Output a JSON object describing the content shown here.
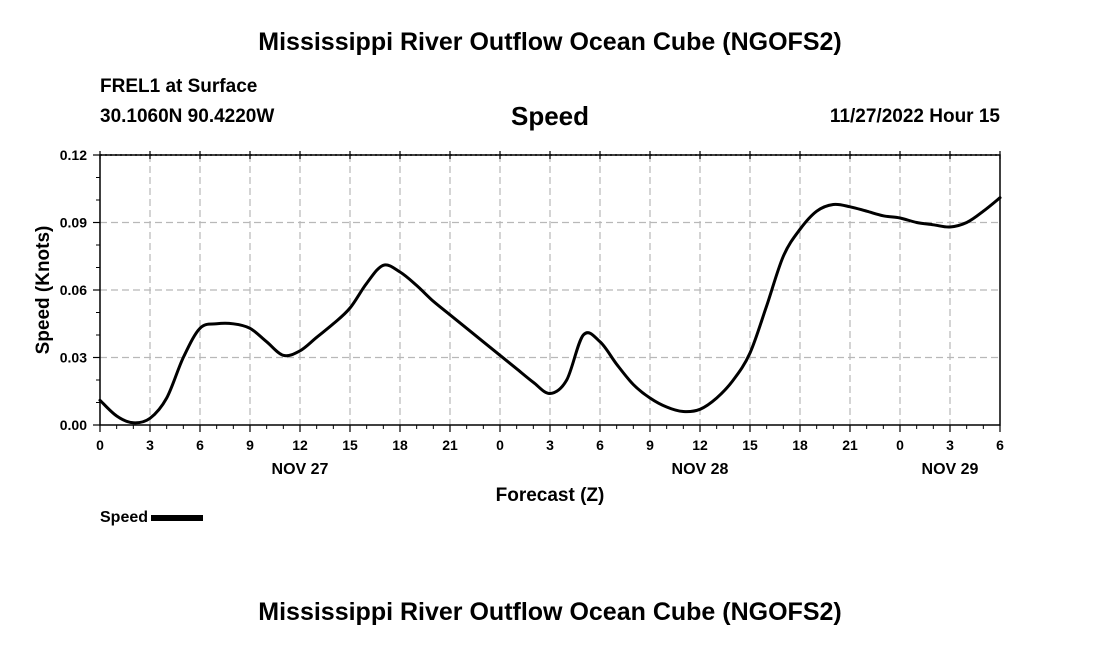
{
  "header": {
    "title": "Mississippi River Outflow Ocean Cube (NGOFS2)",
    "station": "FREL1 at Surface",
    "coordinates": "30.1060N  90.4220W",
    "variable": "Speed",
    "datetime": "11/27/2022 Hour 15"
  },
  "footer": {
    "title": "Mississippi River Outflow Ocean Cube (NGOFS2)"
  },
  "legend": {
    "label": "Speed"
  },
  "chart_data": {
    "type": "line",
    "title": "Speed",
    "xlabel": "Forecast (Z)",
    "ylabel": "Speed (Knots)",
    "x_unit": "hours",
    "xlim": [
      0,
      54
    ],
    "ylim": [
      0,
      0.12
    ],
    "y_ticks": [
      "0.00",
      "0.03",
      "0.06",
      "0.09",
      "0.12"
    ],
    "x_tick_labels": [
      "0",
      "3",
      "6",
      "9",
      "12",
      "15",
      "18",
      "21",
      "0",
      "3",
      "6",
      "9",
      "12",
      "15",
      "18",
      "21",
      "0",
      "3",
      "6"
    ],
    "date_labels": [
      {
        "hour": 12,
        "label": "NOV 27"
      },
      {
        "hour": 36,
        "label": "NOV 28"
      },
      {
        "hour": 51,
        "label": "NOV 29"
      }
    ],
    "grid": true,
    "legend_position": "bottom-left",
    "series": [
      {
        "name": "Speed",
        "color": "#000000",
        "x": [
          0,
          1,
          2,
          3,
          4,
          5,
          6,
          7,
          8,
          9,
          10,
          11,
          12,
          13,
          14,
          15,
          16,
          17,
          18,
          19,
          20,
          21,
          22,
          23,
          24,
          25,
          26,
          27,
          28,
          29,
          30,
          31,
          32,
          33,
          34,
          35,
          36,
          37,
          38,
          39,
          40,
          41,
          42,
          43,
          44,
          45,
          46,
          47,
          48,
          49,
          50,
          51,
          52,
          53,
          54
        ],
        "y": [
          0.011,
          0.004,
          0.001,
          0.003,
          0.012,
          0.03,
          0.043,
          0.045,
          0.045,
          0.043,
          0.037,
          0.031,
          0.033,
          0.039,
          0.045,
          0.052,
          0.063,
          0.071,
          0.068,
          0.062,
          0.055,
          0.049,
          0.043,
          0.037,
          0.031,
          0.025,
          0.019,
          0.014,
          0.02,
          0.04,
          0.037,
          0.027,
          0.018,
          0.012,
          0.008,
          0.006,
          0.007,
          0.012,
          0.02,
          0.032,
          0.053,
          0.075,
          0.087,
          0.095,
          0.098,
          0.097,
          0.095,
          0.093,
          0.092,
          0.09,
          0.089,
          0.088,
          0.09,
          0.095,
          0.101
        ]
      }
    ]
  }
}
